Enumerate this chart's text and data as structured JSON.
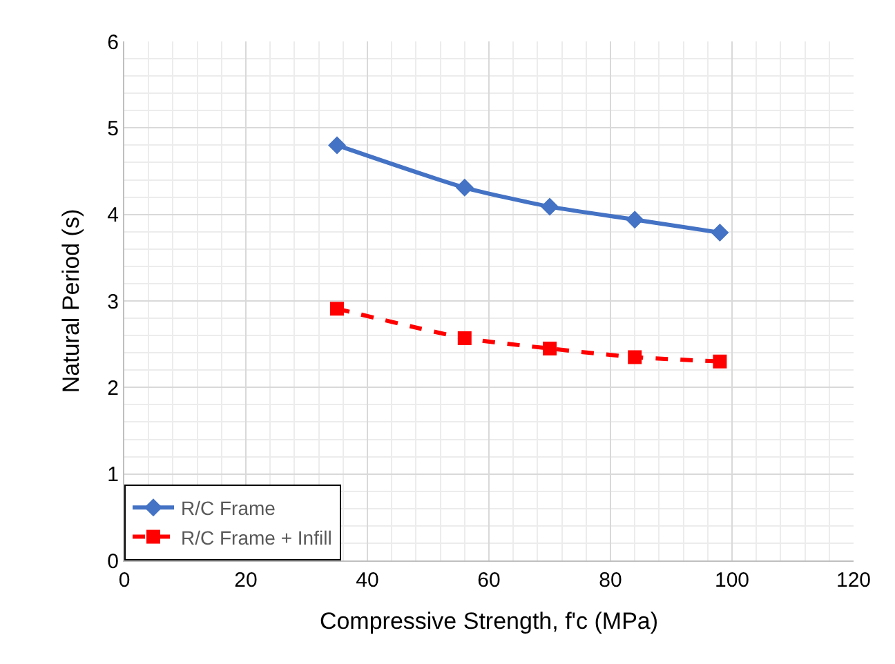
{
  "chart_data": {
    "type": "line",
    "xlabel": "Compressive Strength, f'c (MPa)",
    "ylabel": "Natural Period (s)",
    "x": [
      35,
      56,
      70,
      84,
      98
    ],
    "series": [
      {
        "name": "R/C Frame",
        "color": "#4472c4",
        "values": [
          4.8,
          4.31,
          4.09,
          3.94,
          3.79
        ],
        "marker": "diamond",
        "line_style": "solid"
      },
      {
        "name": "R/C Frame + Infill",
        "color": "#ff0000",
        "values": [
          2.91,
          2.57,
          2.45,
          2.35,
          2.3
        ],
        "marker": "square",
        "line_style": "dashed"
      }
    ],
    "xlim": [
      0,
      120
    ],
    "xticks": [
      0,
      20,
      40,
      60,
      80,
      100,
      120
    ],
    "ylim": [
      0,
      6
    ],
    "yticks": [
      0,
      1,
      2,
      3,
      4,
      5,
      6
    ],
    "grid": true,
    "legend": "bottom left"
  }
}
